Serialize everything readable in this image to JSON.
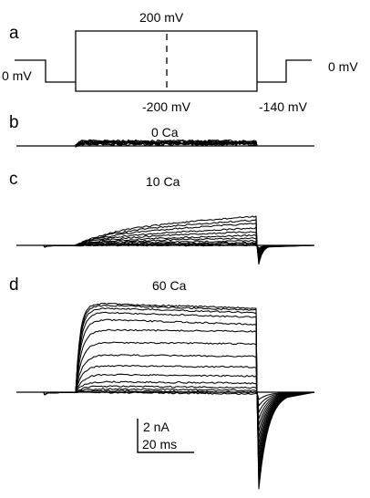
{
  "panels": {
    "a": {
      "letter": "a",
      "labels": {
        "top": "200 mV",
        "hold_left": "0 mV",
        "bottom": "-200 mV",
        "tail": "-140 mV",
        "hold_right": "0 mV"
      }
    },
    "b": {
      "letter": "b",
      "condition": "0 Ca"
    },
    "c": {
      "letter": "c",
      "condition": "10 Ca"
    },
    "d": {
      "letter": "d",
      "condition": "60 Ca"
    }
  },
  "scale_bar": {
    "current_label": "2 nA",
    "time_label": "20 ms"
  }
}
